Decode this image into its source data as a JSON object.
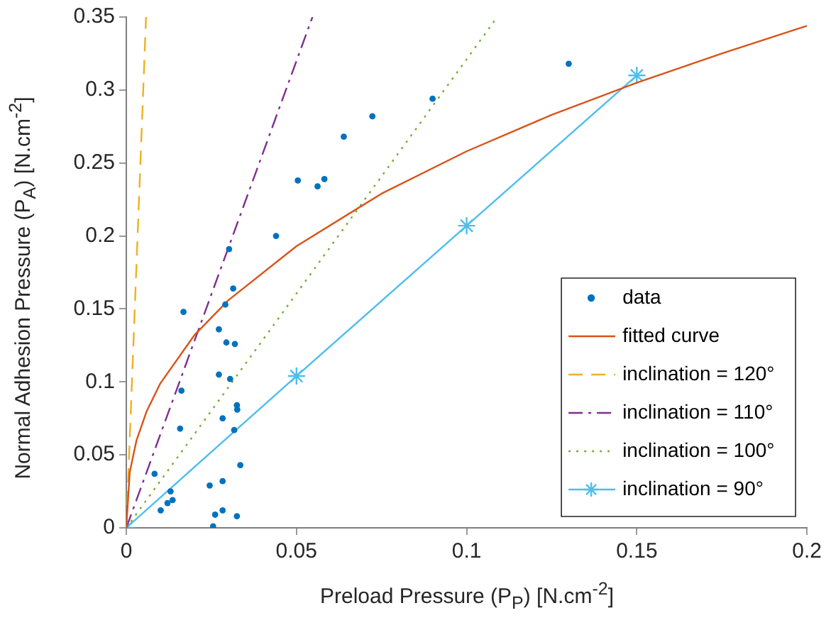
{
  "chart_data": {
    "type": "scatter",
    "xlabel": "Preload Pressure (P$_{P}$) [N.cm$^{-2}$]",
    "ylabel": "Normal Adhesion Pressure (P$_{A}$) [N.cm$^{-2}$]",
    "xlim": [
      0,
      0.2
    ],
    "xticks": [
      0,
      0.05,
      0.1,
      0.15,
      0.2
    ],
    "ylim": [
      0,
      0.35
    ],
    "yticks": [
      0,
      0.05,
      0.1,
      0.15,
      0.2,
      0.25,
      0.3,
      0.35
    ],
    "grid": false,
    "legend": "bottom right",
    "series": [
      {
        "name": "data",
        "marker": "circle",
        "color": "#0072bd",
        "x": [
          0.0168,
          0.0302,
          0.0314,
          0.0291,
          0.0272,
          0.0294,
          0.0319,
          0.0272,
          0.0305,
          0.0162,
          0.0325,
          0.0326,
          0.0283,
          0.0158,
          0.0317,
          0.0335,
          0.0083,
          0.0245,
          0.0283,
          0.013,
          0.0136,
          0.0121,
          0.0101,
          0.0261,
          0.0283,
          0.0325,
          0.0255,
          0.044,
          0.0504,
          0.0562,
          0.0582,
          0.0639,
          0.0723,
          0.09,
          0.13
        ],
        "values": [
          0.148,
          0.191,
          0.164,
          0.153,
          0.136,
          0.127,
          0.126,
          0.105,
          0.102,
          0.094,
          0.084,
          0.081,
          0.075,
          0.068,
          0.067,
          0.043,
          0.037,
          0.029,
          0.032,
          0.025,
          0.019,
          0.017,
          0.012,
          0.009,
          0.012,
          0.008,
          0.001,
          0.2,
          0.238,
          0.234,
          0.239,
          0.268,
          0.282,
          0.294,
          0.318
        ]
      },
      {
        "name": "fitted curve",
        "type": "line",
        "marker": "none",
        "line_style": "solid",
        "color": "#d95319",
        "x": [
          0,
          0.001,
          0.003,
          0.006,
          0.01,
          0.02,
          0.03,
          0.05,
          0.075,
          0.1,
          0.125,
          0.15,
          0.175,
          0.2
        ],
        "values": [
          0,
          0.038,
          0.06,
          0.08,
          0.099,
          0.132,
          0.156,
          0.193,
          0.229,
          0.258,
          0.283,
          0.305,
          0.325,
          0.344
        ]
      },
      {
        "name": "inclination = 120°",
        "type": "line",
        "marker": "none",
        "line_style": "dashed",
        "color": "#edb120",
        "x": [
          0,
          0.0058
        ],
        "values": [
          0,
          0.35
        ]
      },
      {
        "name": "inclination = 110°",
        "type": "line",
        "marker": "none",
        "line_style": "dashdot",
        "color": "#7e2f8e",
        "x": [
          0,
          0.0547
        ],
        "values": [
          0,
          0.35
        ]
      },
      {
        "name": "inclination = 100°",
        "type": "line",
        "marker": "none",
        "line_style": "dotted",
        "color": "#77ac30",
        "x": [
          0,
          0.109
        ],
        "values": [
          0,
          0.35
        ]
      },
      {
        "name": "inclination = 90°",
        "type": "line",
        "marker": "cross",
        "line_style": "solid",
        "color": "#4dbeee",
        "x": [
          0,
          0.05,
          0.1,
          0.15
        ],
        "values": [
          0,
          0.104,
          0.207,
          0.31
        ]
      }
    ]
  }
}
